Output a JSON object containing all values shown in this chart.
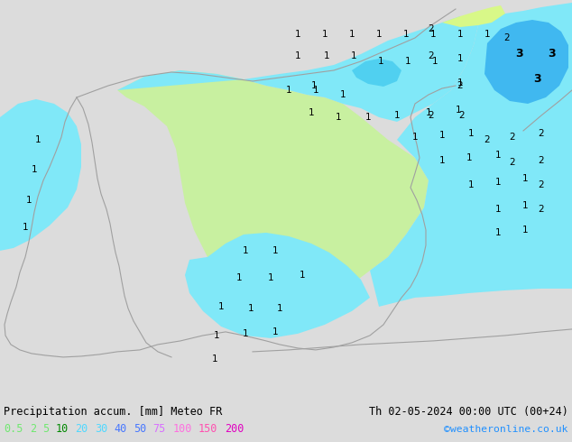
{
  "title_left": "Precipitation accum. [mm] Meteo FR",
  "title_right": "Th 02-05-2024 00:00 UTC (00+24)",
  "credit": "©weatheronline.co.uk",
  "bg_color": "#dcdcdc",
  "sea_color": "#dcdcdc",
  "land_no_precip": "#dcdcdc",
  "green_color": "#c8f0a0",
  "cyan_color": "#80e8f8",
  "cyan_dark_color": "#50d0f0",
  "blue_color": "#40b8f0",
  "yellow_green": "#d8f888",
  "fig_width": 6.34,
  "fig_height": 4.9,
  "dpi": 100,
  "label_colors": [
    [
      "#50e060",
      "0.5"
    ],
    [
      "#50e060",
      "2"
    ],
    [
      "#50e060",
      "5"
    ],
    [
      "#008000",
      "10"
    ],
    [
      "#50d8ff",
      "20"
    ],
    [
      "#50d8ff",
      "30"
    ],
    [
      "#4080ff",
      "40"
    ],
    [
      "#4080ff",
      "50"
    ],
    [
      "#e060ff",
      "75"
    ],
    [
      "#ff60e0",
      "100"
    ],
    [
      "#ff40b0",
      "150"
    ],
    [
      "#e000c0",
      "200"
    ]
  ]
}
